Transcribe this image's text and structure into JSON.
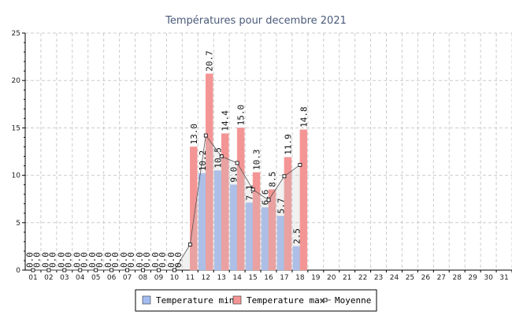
{
  "chart_data": {
    "type": "bar",
    "title": "Températures pour decembre 2021",
    "categories": [
      "01",
      "02",
      "03",
      "04",
      "05",
      "06",
      "07",
      "08",
      "09",
      "10",
      "11",
      "12",
      "13",
      "14",
      "15",
      "16",
      "17",
      "18",
      "19",
      "20",
      "21",
      "22",
      "23",
      "24",
      "25",
      "26",
      "27",
      "28",
      "29",
      "30",
      "31"
    ],
    "ylim": [
      0,
      25
    ],
    "yticks": [
      0,
      5,
      10,
      15,
      20,
      25
    ],
    "grid": true,
    "legend_position": "bottom",
    "series": [
      {
        "name": "Temperature min",
        "type": "bar",
        "color": "#a4bdf0",
        "values": [
          0,
          0,
          0,
          0,
          0,
          0,
          0,
          0,
          0,
          0,
          0,
          10.2,
          10.5,
          9.0,
          7.1,
          6.6,
          5.7,
          2.5,
          null,
          null,
          null,
          null,
          null,
          null,
          null,
          null,
          null,
          null,
          null,
          null,
          null
        ],
        "labels": [
          "0.0",
          "0.0",
          "0.0",
          "0.0",
          "0.0",
          "0.0",
          "0.0",
          "0.0",
          "0.0",
          "0.0",
          "",
          "10.2",
          "10.5",
          "9.0",
          "7.1",
          "6.6",
          "5.7",
          "2.5",
          "",
          "",
          "",
          "",
          "",
          "",
          "",
          "",
          "",
          "",
          "",
          "",
          ""
        ]
      },
      {
        "name": "Temperature max",
        "type": "bar",
        "color": "#f49595",
        "values": [
          0,
          0,
          0,
          0,
          0,
          0,
          0,
          0,
          0,
          0,
          13.0,
          20.7,
          14.4,
          15.0,
          10.3,
          8.5,
          11.9,
          14.8,
          null,
          null,
          null,
          null,
          null,
          null,
          null,
          null,
          null,
          null,
          null,
          null,
          null
        ],
        "labels": [
          "0.0",
          "0.0",
          "0.0",
          "0.0",
          "0.0",
          "0.0",
          "0.0",
          "0.0",
          "0.0",
          "0.0",
          "13.0",
          "20.7",
          "14.4",
          "15.0",
          "10.3",
          "8.5",
          "11.9",
          "14.8",
          "",
          "",
          "",
          "",
          "",
          "",
          "",
          "",
          "",
          "",
          "",
          "",
          ""
        ]
      },
      {
        "name": "Moyenne",
        "type": "line",
        "color": "#555555",
        "values": [
          0,
          0,
          0,
          0,
          0,
          0,
          0,
          0,
          0,
          0,
          2.7,
          14.2,
          12.0,
          11.3,
          8.5,
          7.4,
          9.9,
          11.1,
          null,
          null,
          null,
          null,
          null,
          null,
          null,
          null,
          null,
          null,
          null,
          null,
          null
        ]
      }
    ]
  }
}
